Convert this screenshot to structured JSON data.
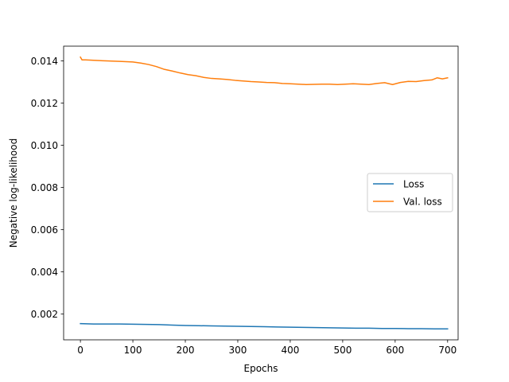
{
  "chart_data": {
    "type": "line",
    "title": "",
    "xlabel": "Epochs",
    "ylabel": "Negative log-likelihood",
    "xlim": [
      -32,
      720
    ],
    "ylim": [
      0.00078,
      0.0147
    ],
    "x_ticks": [
      0,
      100,
      200,
      300,
      400,
      500,
      600,
      700
    ],
    "x_tick_labels": [
      "0",
      "100",
      "200",
      "300",
      "400",
      "500",
      "600",
      "700"
    ],
    "y_ticks": [
      0.002,
      0.004,
      0.006,
      0.008,
      0.01,
      0.012,
      0.014
    ],
    "y_tick_labels": [
      "0.002",
      "0.004",
      "0.006",
      "0.008",
      "0.010",
      "0.012",
      "0.014"
    ],
    "grid": false,
    "legend_position": "center-right",
    "series": [
      {
        "name": "Loss",
        "color": "#1f77b4",
        "x": [
          0,
          25,
          50,
          75,
          100,
          125,
          150,
          175,
          200,
          225,
          250,
          275,
          300,
          325,
          350,
          375,
          400,
          425,
          450,
          475,
          500,
          525,
          550,
          575,
          600,
          625,
          650,
          675,
          700
        ],
        "y": [
          0.00155,
          0.00153,
          0.00153,
          0.00153,
          0.00152,
          0.00151,
          0.0015,
          0.00148,
          0.00146,
          0.00145,
          0.00144,
          0.00143,
          0.00142,
          0.00141,
          0.0014,
          0.00139,
          0.00138,
          0.00137,
          0.00136,
          0.00135,
          0.00134,
          0.00133,
          0.00133,
          0.00132,
          0.00132,
          0.00131,
          0.00131,
          0.0013,
          0.0013
        ]
      },
      {
        "name": "Val. loss",
        "color": "#ff7f0e",
        "x": [
          0,
          3,
          10,
          25,
          50,
          75,
          100,
          115,
          130,
          145,
          160,
          175,
          190,
          205,
          220,
          235,
          250,
          265,
          280,
          295,
          310,
          325,
          340,
          355,
          370,
          385,
          400,
          415,
          430,
          445,
          460,
          475,
          490,
          505,
          520,
          535,
          550,
          565,
          580,
          595,
          610,
          625,
          640,
          655,
          670,
          680,
          690,
          700
        ],
        "y": [
          0.01418,
          0.01405,
          0.01405,
          0.01403,
          0.014,
          0.01398,
          0.01395,
          0.0139,
          0.01383,
          0.01373,
          0.0136,
          0.01352,
          0.01343,
          0.01335,
          0.0133,
          0.01322,
          0.01317,
          0.01315,
          0.01312,
          0.01308,
          0.01305,
          0.01302,
          0.013,
          0.01298,
          0.01297,
          0.01293,
          0.01292,
          0.0129,
          0.01288,
          0.01289,
          0.0129,
          0.0129,
          0.01288,
          0.0129,
          0.01292,
          0.0129,
          0.01288,
          0.01293,
          0.01297,
          0.01288,
          0.01298,
          0.01303,
          0.01302,
          0.01307,
          0.0131,
          0.0132,
          0.01315,
          0.0132
        ]
      }
    ]
  }
}
